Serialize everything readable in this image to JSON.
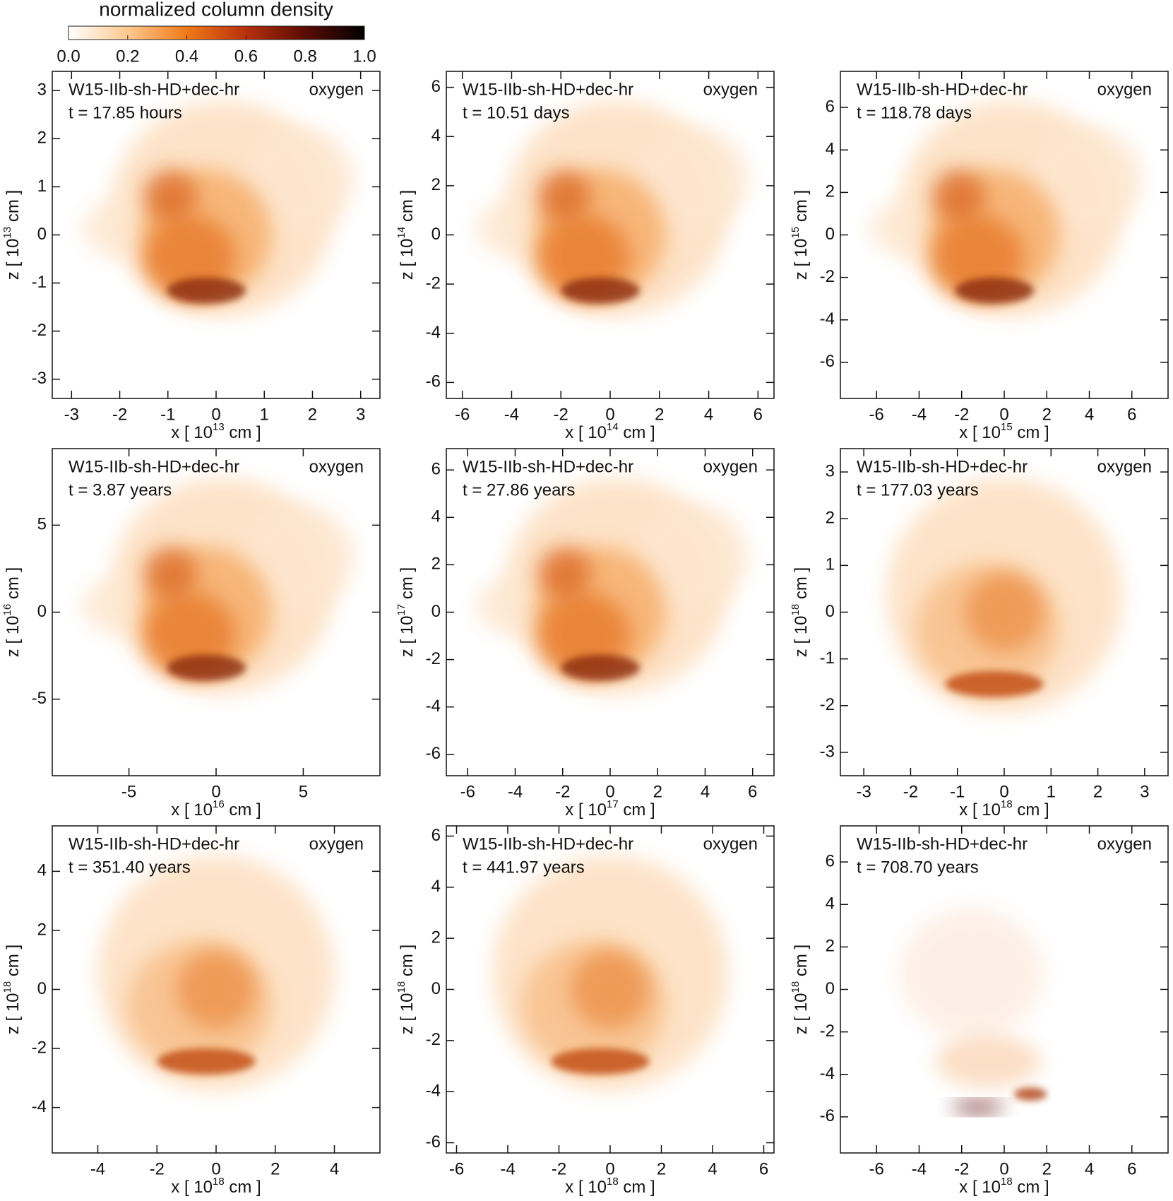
{
  "colorbar": {
    "title": "normalized column density",
    "lim": [
      0,
      1
    ],
    "ticks": [
      {
        "value": 0,
        "label": "0.0"
      },
      {
        "value": 0.2,
        "label": "0.2"
      },
      {
        "value": 0.4,
        "label": "0.4"
      },
      {
        "value": 0.6,
        "label": "0.6"
      },
      {
        "value": 0.8,
        "label": "0.8"
      },
      {
        "value": 1,
        "label": "1.0"
      }
    ]
  },
  "chart_data": [
    {
      "type": "image",
      "model": "W15-IIb-sh-HD+dec-hr",
      "element": "oxygen",
      "time": "t = 17.85 hours",
      "xlabel": {
        "prefix": "x [ 10",
        "exponent": "13",
        "suffix": " cm ]"
      },
      "ylabel": {
        "prefix": "z [ 10",
        "exponent": "13",
        "suffix": " cm ]"
      },
      "xlim": [
        -3.4,
        3.4
      ],
      "ylim": [
        -3.4,
        3.4
      ],
      "xticks": [
        -3,
        -2,
        -1,
        0,
        1,
        2,
        3
      ],
      "yticks": [
        -3,
        -2,
        -1,
        0,
        1,
        2,
        3
      ]
    },
    {
      "type": "image",
      "model": "W15-IIb-sh-HD+dec-hr",
      "element": "oxygen",
      "time": "t = 10.51 days",
      "xlabel": {
        "prefix": "x [ 10",
        "exponent": "14",
        "suffix": " cm ]"
      },
      "ylabel": {
        "prefix": "z [ 10",
        "exponent": "14",
        "suffix": " cm ]"
      },
      "xlim": [
        -6.65,
        6.65
      ],
      "ylim": [
        -6.65,
        6.65
      ],
      "xticks": [
        -6,
        -4,
        -2,
        0,
        2,
        4,
        6
      ],
      "yticks": [
        -6,
        -4,
        -2,
        0,
        2,
        4,
        6
      ]
    },
    {
      "type": "image",
      "model": "W15-IIb-sh-HD+dec-hr",
      "element": "oxygen",
      "time": "t = 118.78 days",
      "xlabel": {
        "prefix": "x [ 10",
        "exponent": "15",
        "suffix": " cm ]"
      },
      "ylabel": {
        "prefix": "z [ 10",
        "exponent": "15",
        "suffix": " cm ]"
      },
      "xlim": [
        -7.7,
        7.7
      ],
      "ylim": [
        -7.7,
        7.7
      ],
      "xticks": [
        -6,
        -4,
        -2,
        0,
        2,
        4,
        6
      ],
      "yticks": [
        -6,
        -4,
        -2,
        0,
        2,
        4,
        6
      ]
    },
    {
      "type": "image",
      "model": "W15-IIb-sh-HD+dec-hr",
      "element": "oxygen",
      "time": "t = 3.87 years",
      "xlabel": {
        "prefix": "x [ 10",
        "exponent": "16",
        "suffix": " cm ]"
      },
      "ylabel": {
        "prefix": "z [ 10",
        "exponent": "16",
        "suffix": " cm ]"
      },
      "xlim": [
        -9.4,
        9.4
      ],
      "ylim": [
        -9.4,
        9.4
      ],
      "xticks": [
        -5,
        0,
        5
      ],
      "yticks": [
        -5,
        0,
        5
      ]
    },
    {
      "type": "image",
      "model": "W15-IIb-sh-HD+dec-hr",
      "element": "oxygen",
      "time": "t = 27.86 years",
      "xlabel": {
        "prefix": "x [ 10",
        "exponent": "17",
        "suffix": " cm ]"
      },
      "ylabel": {
        "prefix": "z [ 10",
        "exponent": "17",
        "suffix": " cm ]"
      },
      "xlim": [
        -6.9,
        6.9
      ],
      "ylim": [
        -6.9,
        6.9
      ],
      "xticks": [
        -6,
        -4,
        -2,
        0,
        2,
        4,
        6
      ],
      "yticks": [
        -6,
        -4,
        -2,
        0,
        2,
        4,
        6
      ]
    },
    {
      "type": "image",
      "model": "W15-IIb-sh-HD+dec-hr",
      "element": "oxygen",
      "time": "t = 177.03 years",
      "xlabel": {
        "prefix": "x [ 10",
        "exponent": "18",
        "suffix": " cm ]"
      },
      "ylabel": {
        "prefix": "z [ 10",
        "exponent": "18",
        "suffix": " cm ]"
      },
      "xlim": [
        -3.5,
        3.5
      ],
      "ylim": [
        -3.5,
        3.5
      ],
      "xticks": [
        -3,
        -2,
        -1,
        0,
        1,
        2,
        3
      ],
      "yticks": [
        -3,
        -2,
        -1,
        0,
        1,
        2,
        3
      ]
    },
    {
      "type": "image",
      "model": "W15-IIb-sh-HD+dec-hr",
      "element": "oxygen",
      "time": "t = 351.40 years",
      "xlabel": {
        "prefix": "x [ 10",
        "exponent": "18",
        "suffix": " cm ]"
      },
      "ylabel": {
        "prefix": "z [ 10",
        "exponent": "18",
        "suffix": " cm ]"
      },
      "xlim": [
        -5.54,
        5.54
      ],
      "ylim": [
        -5.54,
        5.54
      ],
      "xticks": [
        -4,
        -2,
        0,
        2,
        4
      ],
      "yticks": [
        -4,
        -2,
        0,
        2,
        4
      ]
    },
    {
      "type": "image",
      "model": "W15-IIb-sh-HD+dec-hr",
      "element": "oxygen",
      "time": "t = 441.97 years",
      "xlabel": {
        "prefix": "x [ 10",
        "exponent": "18",
        "suffix": " cm ]"
      },
      "ylabel": {
        "prefix": "z [ 10",
        "exponent": "18",
        "suffix": " cm ]"
      },
      "xlim": [
        -6.4,
        6.4
      ],
      "ylim": [
        -6.4,
        6.4
      ],
      "xticks": [
        -6,
        -4,
        -2,
        0,
        2,
        4,
        6
      ],
      "yticks": [
        -6,
        -4,
        -2,
        0,
        2,
        4,
        6
      ]
    },
    {
      "type": "image",
      "model": "W15-IIb-sh-HD+dec-hr",
      "element": "oxygen",
      "time": "t = 708.70 years",
      "xlabel": {
        "prefix": "x [ 10",
        "exponent": "18",
        "suffix": " cm ]"
      },
      "ylabel": {
        "prefix": "z [ 10",
        "exponent": "18",
        "suffix": " cm ]"
      },
      "xlim": [
        -7.7,
        7.7
      ],
      "ylim": [
        -7.7,
        7.7
      ],
      "xticks": [
        -6,
        -4,
        -2,
        0,
        2,
        4,
        6
      ],
      "yticks": [
        -6,
        -4,
        -2,
        0,
        2,
        4,
        6
      ]
    }
  ]
}
